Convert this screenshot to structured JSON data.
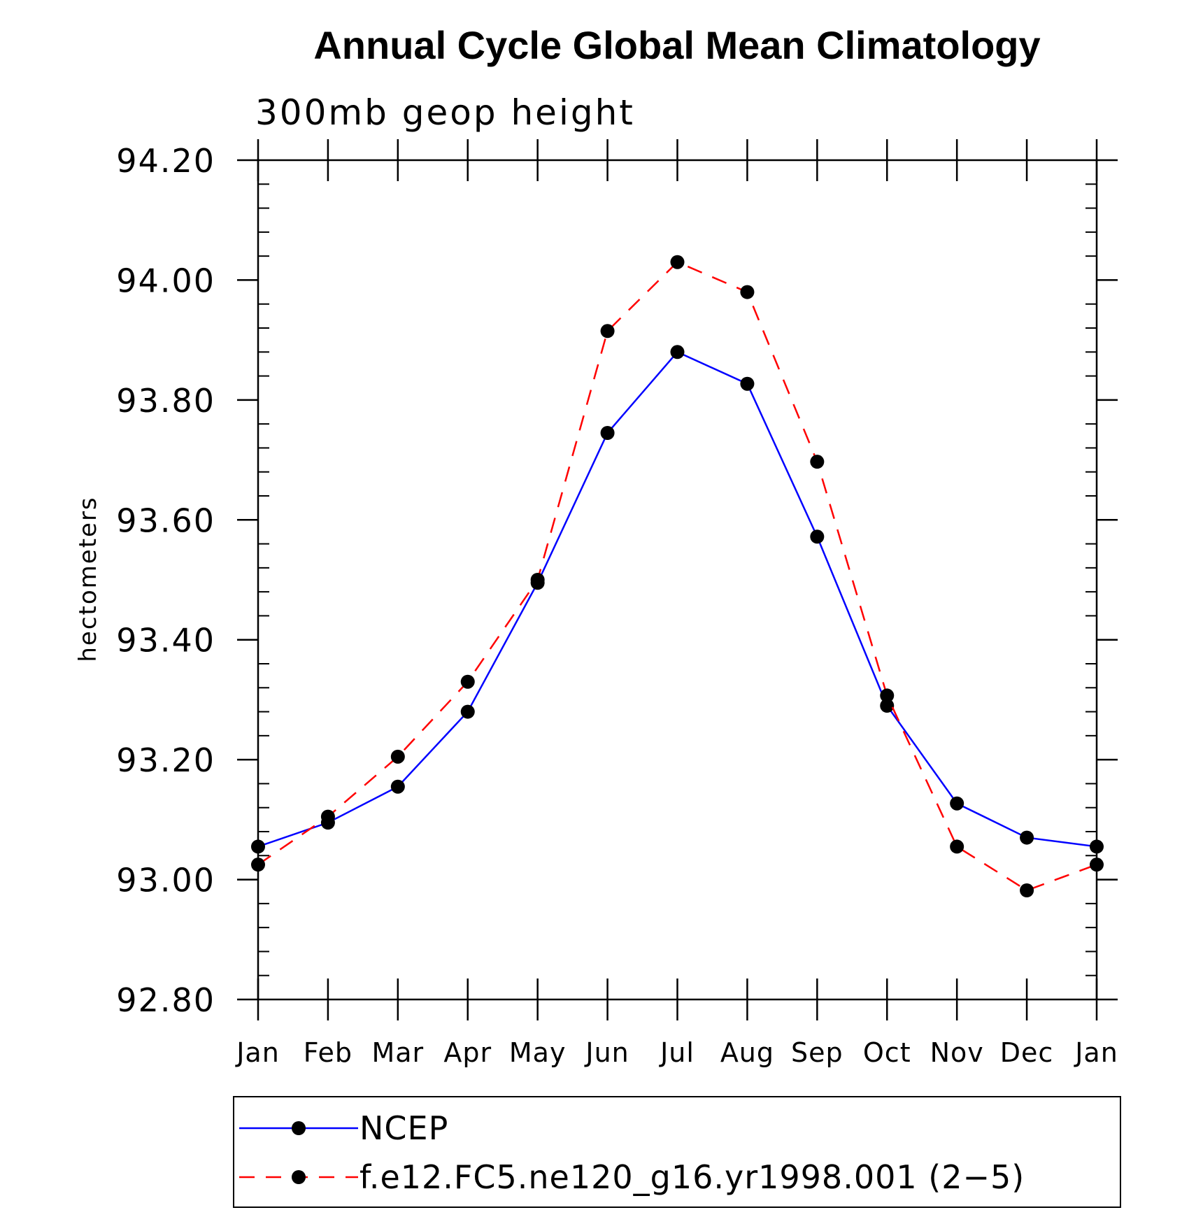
{
  "chart_data": {
    "type": "line",
    "title": "Annual Cycle Global Mean Climatology",
    "subtitle": "300mb geop height",
    "xlabel": "",
    "ylabel": "hectometers",
    "categories": [
      "Jan",
      "Feb",
      "Mar",
      "Apr",
      "May",
      "Jun",
      "Jul",
      "Aug",
      "Sep",
      "Oct",
      "Nov",
      "Dec",
      "Jan"
    ],
    "ylim": [
      92.8,
      94.2
    ],
    "yticks": [
      "92.80",
      "93.00",
      "93.20",
      "93.40",
      "93.60",
      "93.80",
      "94.00",
      "94.20"
    ],
    "series": [
      {
        "name": "NCEP",
        "color": "#0000ff",
        "style": "solid",
        "values": [
          93.055,
          93.095,
          93.155,
          93.28,
          93.495,
          93.745,
          93.88,
          93.827,
          93.572,
          93.29,
          93.127,
          93.07,
          93.055
        ]
      },
      {
        "name": "f.e12.FC5.ne120_g16.yr1998.001 (2−5)",
        "color": "#ff0000",
        "style": "dashed",
        "values": [
          93.025,
          93.105,
          93.205,
          93.33,
          93.5,
          93.915,
          94.03,
          93.98,
          93.697,
          93.307,
          93.055,
          92.982,
          93.025
        ]
      }
    ],
    "legend_position": "bottom",
    "grid": false
  }
}
